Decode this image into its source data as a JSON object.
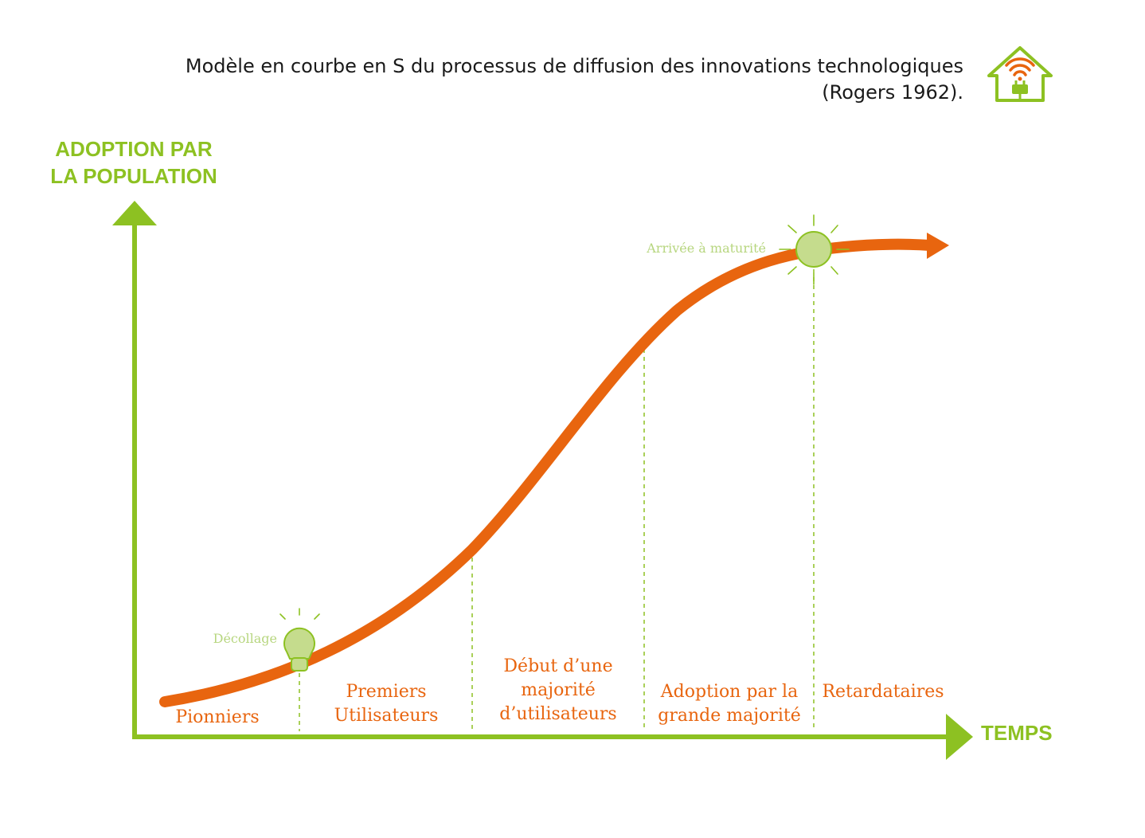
{
  "title": {
    "line1": "Modèle en courbe en S du processus de diffusion des innovations technologiques",
    "line2": "(Rogers 1962)."
  },
  "axes": {
    "y_label_line1": "ADOPTION PAR",
    "y_label_line2": "LA POPULATION",
    "x_label": "TEMPS"
  },
  "milestones": {
    "takeoff": "Décollage",
    "maturity": "Arrivée à maturité"
  },
  "phases": [
    {
      "lines": [
        "Pionniers"
      ]
    },
    {
      "lines": [
        "Premiers",
        "Utilisateurs"
      ]
    },
    {
      "lines": [
        "Début d’une",
        "majorité",
        "d’utilisateurs"
      ]
    },
    {
      "lines": [
        "Adoption par la",
        "grande majorité"
      ]
    },
    {
      "lines": [
        "Retardataires"
      ]
    }
  ],
  "icons": {
    "logo": "house-plug-wifi-icon",
    "takeoff": "lightbulb-icon",
    "maturity": "sun-icon"
  },
  "colors": {
    "axis": "#8dc122",
    "curve": "#e8650f",
    "milestone": "#c5dc8d",
    "milestone_text": "#b7d67f",
    "phase_text": "#e8650f",
    "title_text": "#1a1a1a"
  }
}
